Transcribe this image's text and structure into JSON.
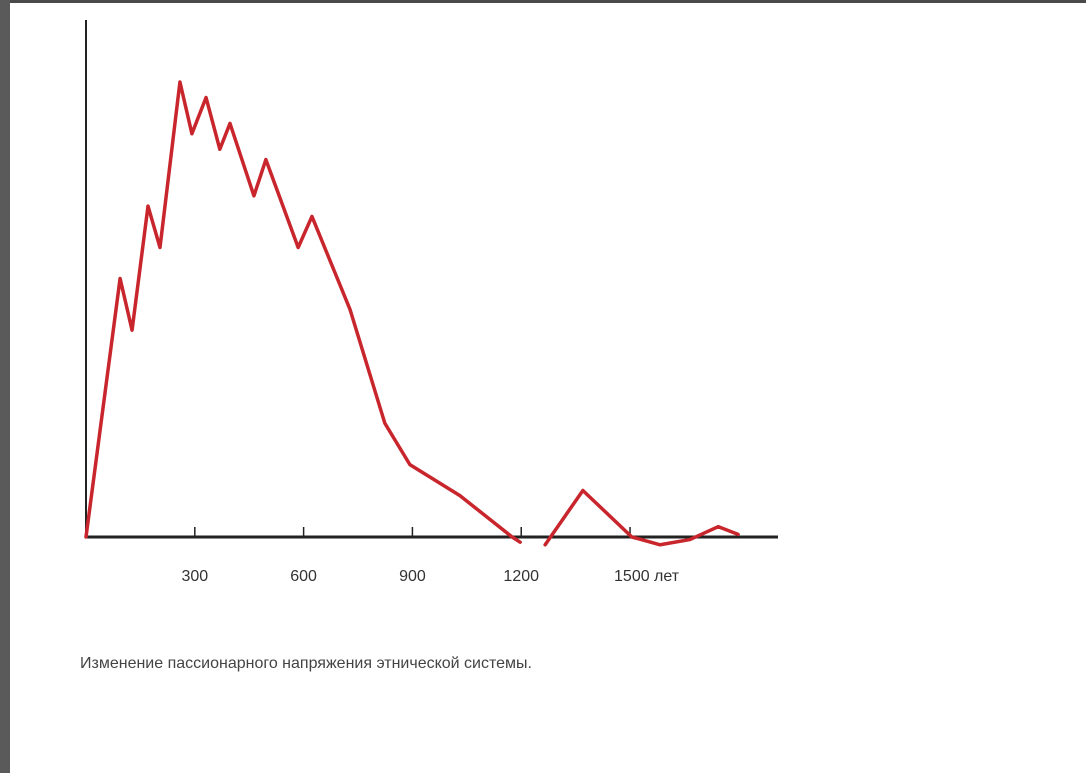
{
  "chart_data": {
    "type": "line",
    "caption": "Изменение пассионарного напряжения этнической системы.",
    "x": [
      0,
      94,
      127,
      171,
      204,
      259,
      292,
      331,
      369,
      397,
      463,
      496,
      585,
      623,
      728,
      824,
      893,
      1031,
      1175,
      1197,
      1230,
      1266,
      1370,
      1505,
      1583,
      1665,
      1743,
      1798
    ],
    "values": [
      0,
      50,
      40,
      64,
      56,
      88,
      78,
      85,
      75,
      80,
      66,
      73,
      56,
      62,
      44,
      22,
      14,
      8,
      0,
      -1,
      null,
      -1.5,
      9,
      0,
      -1.5,
      -0.5,
      2,
      0.5
    ],
    "color": "#c8262c",
    "xlim": [
      0,
      1908
    ],
    "ylim": [
      0,
      100
    ],
    "xticks": [
      300,
      600,
      900,
      1200,
      {
        "value": 1500,
        "label": "1500 лет"
      }
    ]
  }
}
